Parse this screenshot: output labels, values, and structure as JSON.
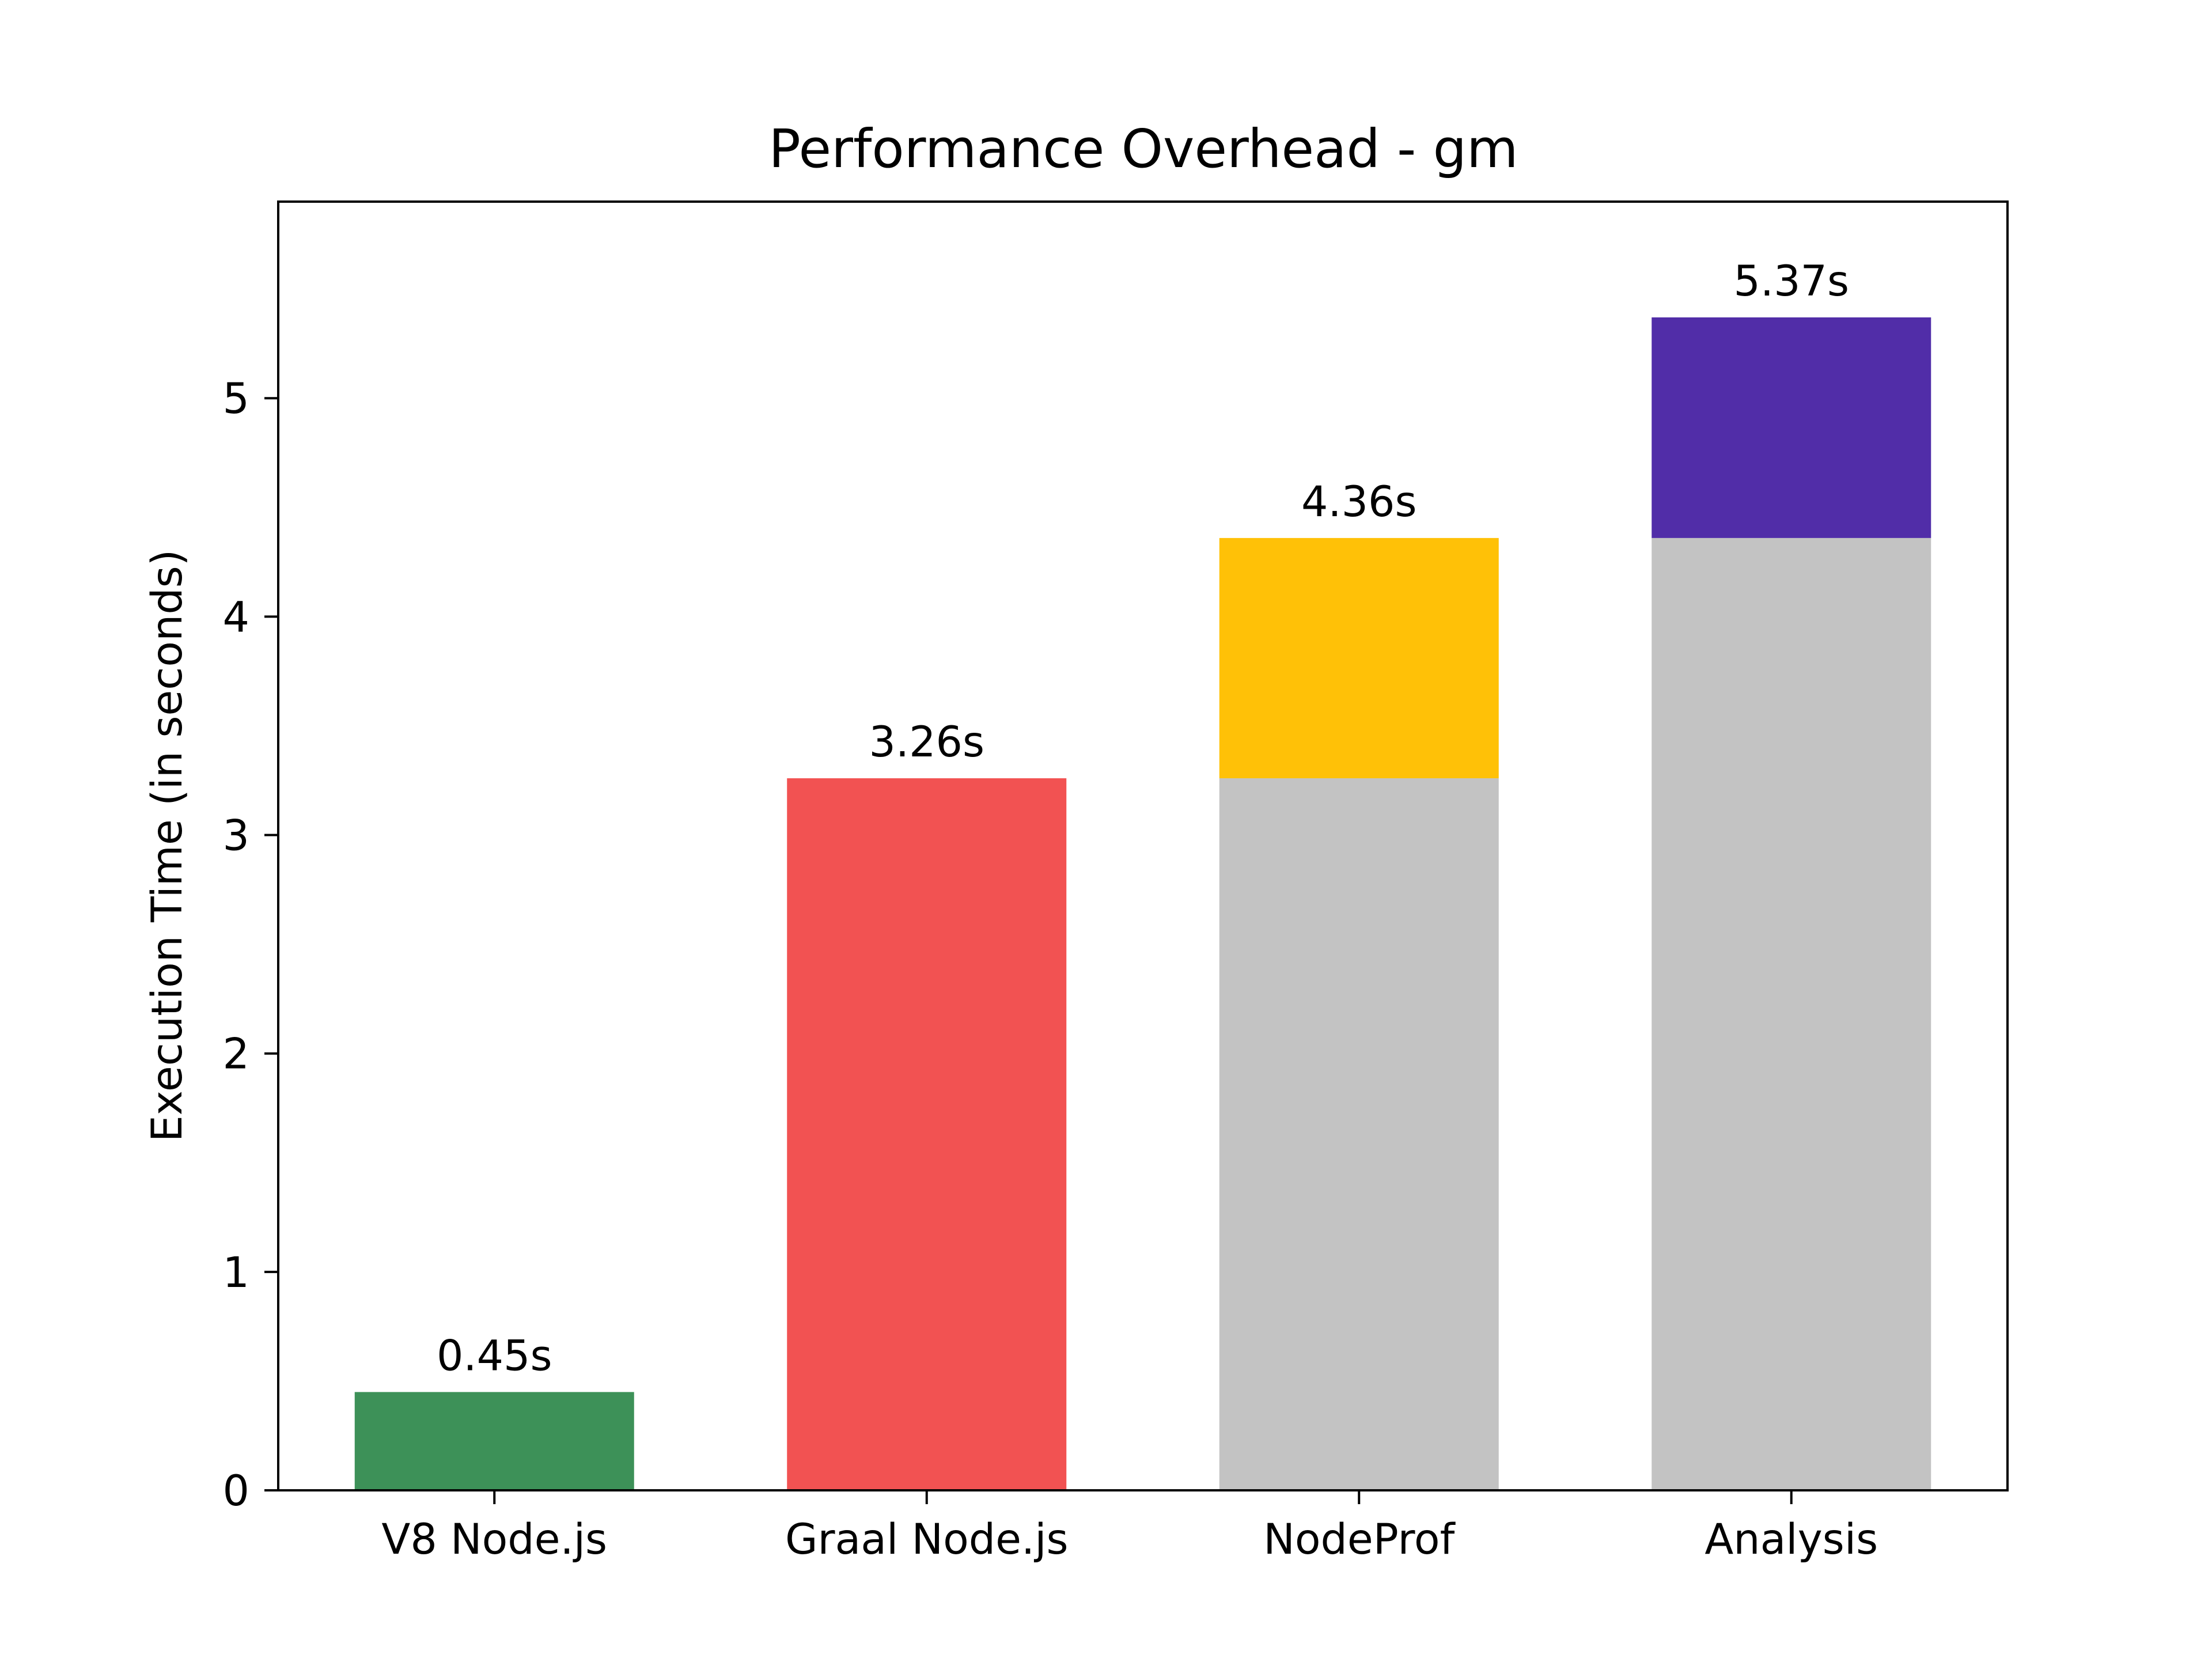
{
  "chart_data": {
    "type": "bar",
    "stacked": true,
    "title": "Performance Overhead - gm",
    "xlabel": "",
    "ylabel": "Execution Time (in seconds)",
    "ylim": [
      0,
      5.9
    ],
    "yticks": [
      0,
      1,
      2,
      3,
      4,
      5
    ],
    "grid": false,
    "categories": [
      "V8 Node.js",
      "Graal Node.js",
      "NodeProf",
      "Analysis"
    ],
    "bars": [
      {
        "category": "V8 Node.js",
        "total_label": "0.45s",
        "segments": [
          {
            "value": 0.45,
            "color": "#3d9158"
          }
        ]
      },
      {
        "category": "Graal Node.js",
        "total_label": "3.26s",
        "segments": [
          {
            "value": 3.26,
            "color": "#f25252"
          }
        ]
      },
      {
        "category": "NodeProf",
        "total_label": "4.36s",
        "segments": [
          {
            "value": 3.26,
            "color": "#c3c3c3"
          },
          {
            "value": 1.1,
            "color": "#ffc107"
          }
        ]
      },
      {
        "category": "Analysis",
        "total_label": "5.37s",
        "segments": [
          {
            "value": 4.36,
            "color": "#c3c3c3"
          },
          {
            "value": 1.01,
            "color": "#512da8"
          }
        ]
      }
    ]
  }
}
